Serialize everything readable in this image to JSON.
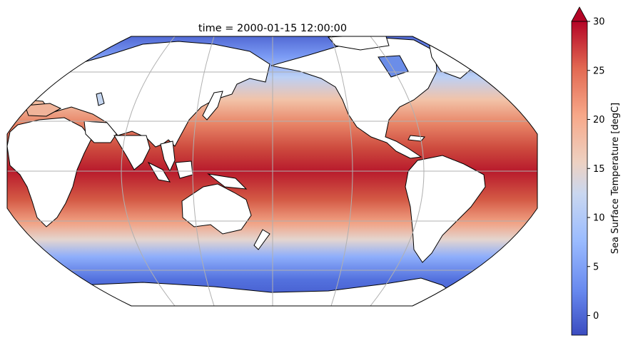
{
  "title": "time = 2000-01-15 12:00:00",
  "colorbar": {
    "label": "Sea Surface Temperature [degC]",
    "ticks": [
      "30",
      "25",
      "20",
      "15",
      "10",
      "5",
      "0"
    ],
    "tick_values": [
      30,
      25,
      20,
      15,
      10,
      5,
      0
    ],
    "vmin": -2,
    "vmax": 30,
    "extend": "max",
    "colormap": "coolwarm",
    "colors": [
      "#3b4cc0",
      "#6788ee",
      "#9abbff",
      "#c9d7f0",
      "#edd1c2",
      "#f7a889",
      "#e26952",
      "#b40426"
    ]
  },
  "map": {
    "projection": "Robinson",
    "central_longitude": 180,
    "gridlines": true,
    "coastlines": true,
    "land_color": "#ffffff",
    "ocean_field": "sea surface temperature"
  }
}
